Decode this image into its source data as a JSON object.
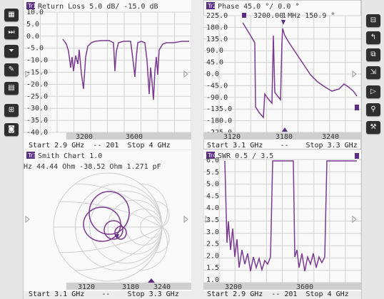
{
  "toolbar_left": {
    "buttons": [
      {
        "name": "display-icon",
        "glyph": "▦"
      },
      {
        "name": "channel-skip-icon",
        "glyph": "⏭"
      },
      {
        "name": "filter-icon",
        "glyph": "⏷"
      },
      {
        "name": "pen-icon",
        "glyph": "✎"
      },
      {
        "name": "calculator-icon",
        "glyph": "▤"
      },
      {
        "name": "calibration-icon",
        "glyph": "⊞"
      },
      {
        "name": "camera-icon",
        "glyph": "◙"
      }
    ]
  },
  "toolbar_right": {
    "buttons": [
      {
        "name": "layout-icon",
        "glyph": "⊟"
      },
      {
        "name": "frequency-icon",
        "glyph": "↰"
      },
      {
        "name": "window-icon",
        "glyph": "⧉"
      },
      {
        "name": "sweep-icon",
        "glyph": "⇲"
      },
      {
        "name": "marker-icon",
        "glyph": "▷"
      },
      {
        "name": "search-icon",
        "glyph": "⚲"
      },
      {
        "name": "tools-icon",
        "glyph": "⚒"
      }
    ]
  },
  "panels": {
    "return_loss": {
      "badge": "Tr1",
      "header": "Return Loss 5.0 dB/ -15.0 dB",
      "yticks": [
        "10.0",
        "5.0",
        "0.0",
        "-5.0",
        "-10.0",
        "-15.0",
        "-20.0",
        "-25.0",
        "-30.0",
        "-35.0",
        "-40.0"
      ],
      "xticks": [
        "3200",
        "3600"
      ],
      "footer": "Start 2.9 GHz  -- 201  Stop 4 GHz"
    },
    "phase": {
      "badge": "Tr2",
      "header": "Phase 45.0 °/ 0.0 °",
      "marker_readout": "3200.00 MHz  150.9 °",
      "marker_id": "1",
      "yticks": [
        "225.0",
        "180.0",
        "135.0",
        "90.0",
        "45.0",
        "0.0",
        "-45.0",
        "-90.0",
        "-135.0",
        "-180.0",
        "-225.0"
      ],
      "xticks": [
        "3120",
        "3180",
        "3240"
      ],
      "footer": "Start 3.1 GHz    --    Stop 3.3 GHz"
    },
    "smith": {
      "badge": "Tr3",
      "header": "Smith Chart 1.0",
      "readout": "MHz  44.44 Ohm -38.52 Ohm  1.271 pF",
      "xticks": [
        "3120",
        "3180",
        "3240"
      ],
      "footer": "Start 3.1 GHz    --    Stop 3.3 GHz"
    },
    "swr": {
      "badge": "Tr4",
      "header": "SWR 0.5 / 3.5",
      "yticks": [
        "6.0",
        "5.5",
        "5.0",
        "4.5",
        "4.0",
        "3.5",
        "3.0",
        "2.5",
        "2.0",
        "1.5",
        "1.0"
      ],
      "xticks": [
        "3200",
        "3600"
      ],
      "footer": "Start 2.9 GHz  -- 201  Stop 4 GHz"
    }
  },
  "colors": {
    "trace": "#7a3b8f",
    "grid": "#d2d2d2",
    "plot_bg": "#fafafa",
    "badge": "#5b2d86",
    "axis_strip": "#cfcfcf"
  }
}
